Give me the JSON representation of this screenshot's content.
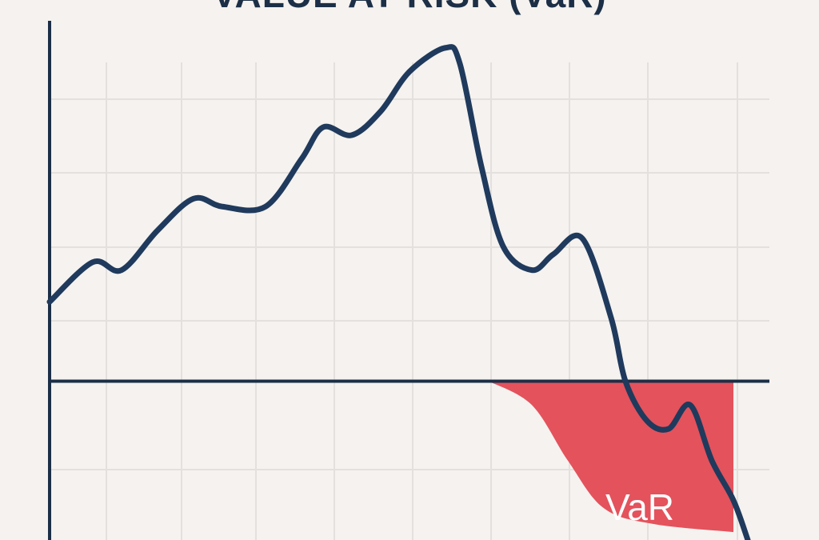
{
  "colors": {
    "background": "#f5f2ef",
    "grid": "#e3e0dd",
    "axis": "#1c2f47",
    "line": "#1f3a5c",
    "var_fill": "#e4525c",
    "var_text": "#ffffff"
  },
  "chart_data": {
    "type": "line",
    "title": "VALUE AT RISK (VaR)",
    "xlabel": "",
    "ylabel": "",
    "grid": true,
    "xlim": [
      0,
      100
    ],
    "ylim": [
      -2,
      4.5
    ],
    "baseline": 0,
    "series": [
      {
        "x": [
          0,
          6,
          10,
          15,
          20,
          24,
          30,
          35,
          38,
          42,
          46,
          50,
          55,
          57,
          60,
          63,
          67,
          70,
          74,
          78,
          80,
          83,
          86,
          89,
          92,
          95,
          97
        ],
        "values": [
          1.0,
          1.5,
          1.4,
          1.9,
          2.3,
          2.2,
          2.2,
          2.8,
          3.2,
          3.1,
          3.4,
          3.9,
          4.2,
          4.0,
          2.7,
          1.7,
          1.4,
          1.6,
          1.8,
          0.8,
          0.0,
          -0.5,
          -0.6,
          -0.3,
          -1.0,
          -1.5,
          -2.0
        ]
      }
    ],
    "var_region": {
      "label": "VaR",
      "x": [
        61,
        67,
        72,
        77,
        84,
        95
      ],
      "values": [
        0.0,
        -0.3,
        -1.0,
        -1.6,
        -1.8,
        -1.9
      ]
    }
  }
}
